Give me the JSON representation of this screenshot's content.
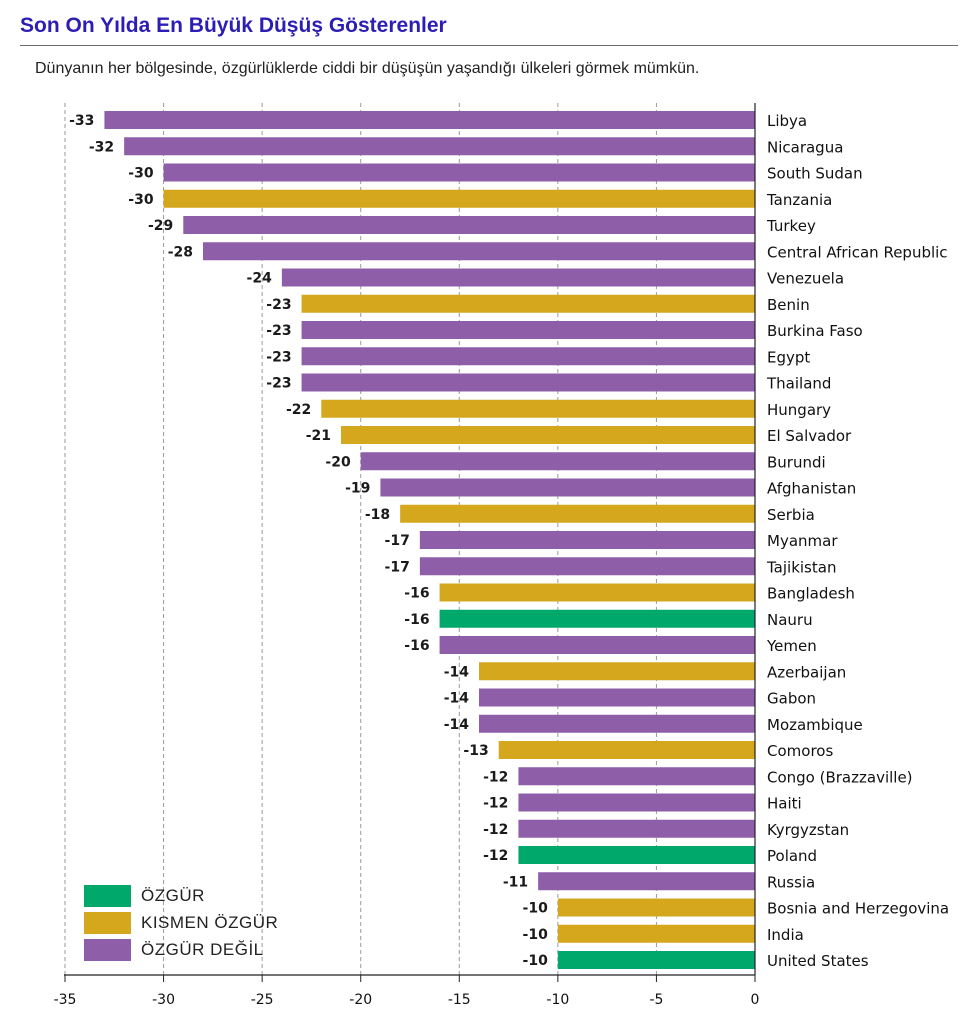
{
  "title": "Son On Yılda En Büyük Düşüş Gösterenler",
  "subtitle": "Dünyanın her bölgesinde, özgürlüklerde ciddi bir düşüşün yaşandığı ülkeleri görmek mümkün.",
  "colors": {
    "ozgur": "#00a86b",
    "kismen": "#d4a71c",
    "degil": "#8e5ea8"
  },
  "legend": [
    {
      "key": "ozgur",
      "label": "ÖZGÜR"
    },
    {
      "key": "kismen",
      "label": "KISMEN ÖZGÜR"
    },
    {
      "key": "degil",
      "label": "ÖZGÜR DEĞİL"
    }
  ],
  "chart_data": {
    "type": "bar",
    "orientation": "horizontal",
    "xlim": [
      -35,
      0
    ],
    "xticks": [
      -35,
      -30,
      -25,
      -20,
      -15,
      -10,
      -5,
      0
    ],
    "grid": "vertical dashed",
    "legend_position": "bottom-left",
    "categories": [
      "Libya",
      "Nicaragua",
      "South Sudan",
      "Tanzania",
      "Turkey",
      "Central African Republic",
      "Venezuela",
      "Benin",
      "Burkina Faso",
      "Egypt",
      "Thailand",
      "Hungary",
      "El Salvador",
      "Burundi",
      "Afghanistan",
      "Serbia",
      "Myanmar",
      "Tajikistan",
      "Bangladesh",
      "Nauru",
      "Yemen",
      "Azerbaijan",
      "Gabon",
      "Mozambique",
      "Comoros",
      "Congo (Brazzaville)",
      "Haiti",
      "Kyrgyzstan",
      "Poland",
      "Russia",
      "Bosnia and Herzegovina",
      "India",
      "United States"
    ],
    "values": [
      -33,
      -32,
      -30,
      -30,
      -29,
      -28,
      -24,
      -23,
      -23,
      -23,
      -23,
      -22,
      -21,
      -20,
      -19,
      -18,
      -17,
      -17,
      -16,
      -16,
      -16,
      -14,
      -14,
      -14,
      -13,
      -12,
      -12,
      -12,
      -12,
      -11,
      -10,
      -10,
      -10
    ],
    "status": [
      "degil",
      "degil",
      "degil",
      "kismen",
      "degil",
      "degil",
      "degil",
      "kismen",
      "degil",
      "degil",
      "degil",
      "kismen",
      "kismen",
      "degil",
      "degil",
      "kismen",
      "degil",
      "degil",
      "kismen",
      "ozgur",
      "degil",
      "kismen",
      "degil",
      "degil",
      "kismen",
      "degil",
      "degil",
      "degil",
      "ozgur",
      "degil",
      "kismen",
      "kismen",
      "ozgur"
    ]
  }
}
